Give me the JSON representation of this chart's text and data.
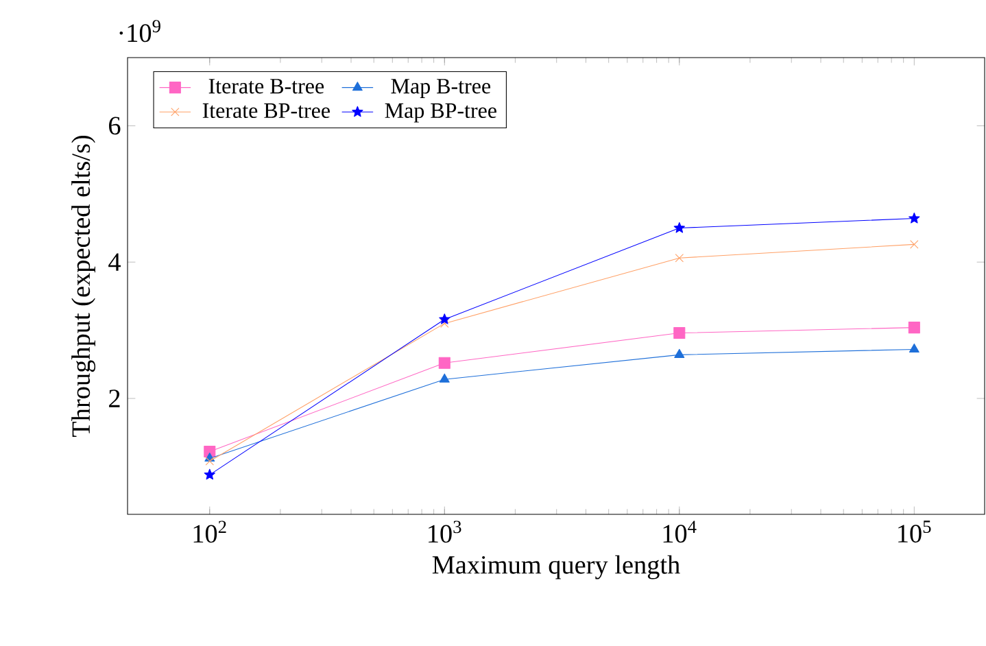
{
  "chart_data": {
    "type": "line",
    "xlabel": "Maximum query length",
    "ylabel": "Throughput (expected elts/s)",
    "annotations": [
      "·10$^{9}$"
    ],
    "log": "x",
    "x": [
      100,
      1000,
      10000,
      100000
    ],
    "xlim": [
      44.7,
      199500
    ],
    "xticks": [
      {
        "value": 100,
        "label": "10$^{2}$"
      },
      {
        "value": 1000,
        "label": "10$^{3}$"
      },
      {
        "value": 10000,
        "label": "10$^{4}$"
      },
      {
        "value": 100000,
        "label": "10$^{5}$"
      }
    ],
    "ylim": [
      0.3,
      7
    ],
    "yticks": [
      2,
      4,
      6
    ],
    "legend": "top left",
    "grid": false,
    "series": [
      {
        "name": "Iterate B-tree",
        "color": "#ff66c4",
        "marker": "square",
        "values": [
          1.22,
          2.52,
          2.96,
          3.04
        ]
      },
      {
        "name": "Map B-tree",
        "color": "#1e6fd9",
        "marker": "triangle",
        "values": [
          1.12,
          2.28,
          2.64,
          2.72
        ]
      },
      {
        "name": "Iterate BP-tree",
        "color": "#ffa066",
        "marker": "cross",
        "values": [
          1.08,
          3.1,
          4.06,
          4.26
        ]
      },
      {
        "name": "Map BP-tree",
        "color": "#0000ff",
        "marker": "star",
        "values": [
          0.88,
          3.16,
          4.5,
          4.64
        ]
      }
    ]
  }
}
